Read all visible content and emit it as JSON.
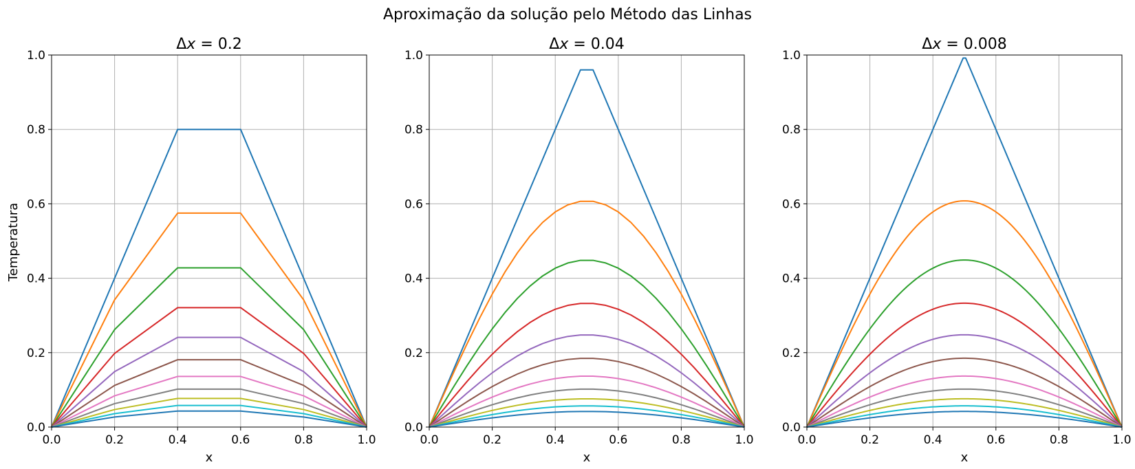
{
  "figure": {
    "suptitle": "Aproximação da solução pelo Método das Linhas",
    "ylabel": "Temperatura"
  },
  "colors": [
    "#1f77b4",
    "#ff7f0e",
    "#2ca02c",
    "#d62728",
    "#9467bd",
    "#8c564b",
    "#e377c2",
    "#7f7f7f",
    "#bcbd22",
    "#17becf",
    "#1f77b4"
  ],
  "chart_data": [
    {
      "type": "line",
      "title_prefix": "Δ",
      "title_var": "x",
      "title_suffix": " = 0.2",
      "xlabel": "x",
      "xlim": [
        0,
        1
      ],
      "ylim": [
        0,
        1
      ],
      "xticks": [
        "0.0",
        "0.2",
        "0.4",
        "0.6",
        "0.8",
        "1.0"
      ],
      "yticks": [
        "0.0",
        "0.2",
        "0.4",
        "0.6",
        "0.8",
        "1.0"
      ],
      "grid": true,
      "dx": 0.2,
      "peaks": [
        0.8,
        0.575,
        0.428,
        0.321,
        0.241,
        0.181,
        0.136,
        0.102,
        0.077,
        0.058,
        0.043
      ],
      "shoulders": [
        0.4,
        0.342,
        0.262,
        0.198,
        0.149,
        0.112,
        0.084,
        0.063,
        0.047,
        0.036,
        0.027
      ]
    },
    {
      "type": "line",
      "title_prefix": "Δ",
      "title_var": "x",
      "title_suffix": " = 0.04",
      "xlabel": "x",
      "xlim": [
        0,
        1
      ],
      "ylim": [
        0,
        1
      ],
      "xticks": [
        "0.0",
        "0.2",
        "0.4",
        "0.6",
        "0.8",
        "1.0"
      ],
      "yticks": [
        "0.0",
        "0.2",
        "0.4",
        "0.6",
        "0.8",
        "1.0"
      ],
      "grid": true,
      "dx": 0.04,
      "peaks": [
        0.96,
        0.608,
        0.449,
        0.333,
        0.248,
        0.185,
        0.137,
        0.102,
        0.076,
        0.057,
        0.042
      ]
    },
    {
      "type": "line",
      "title_prefix": "Δ",
      "title_var": "x",
      "title_suffix": " = 0.008",
      "xlabel": "x",
      "xlim": [
        0,
        1
      ],
      "ylim": [
        0,
        1
      ],
      "xticks": [
        "0.0",
        "0.2",
        "0.4",
        "0.6",
        "0.8",
        "1.0"
      ],
      "yticks": [
        "0.0",
        "0.2",
        "0.4",
        "0.6",
        "0.8",
        "1.0"
      ],
      "grid": true,
      "dx": 0.008,
      "peaks": [
        0.992,
        0.608,
        0.449,
        0.333,
        0.248,
        0.185,
        0.137,
        0.102,
        0.076,
        0.057,
        0.042
      ]
    }
  ]
}
